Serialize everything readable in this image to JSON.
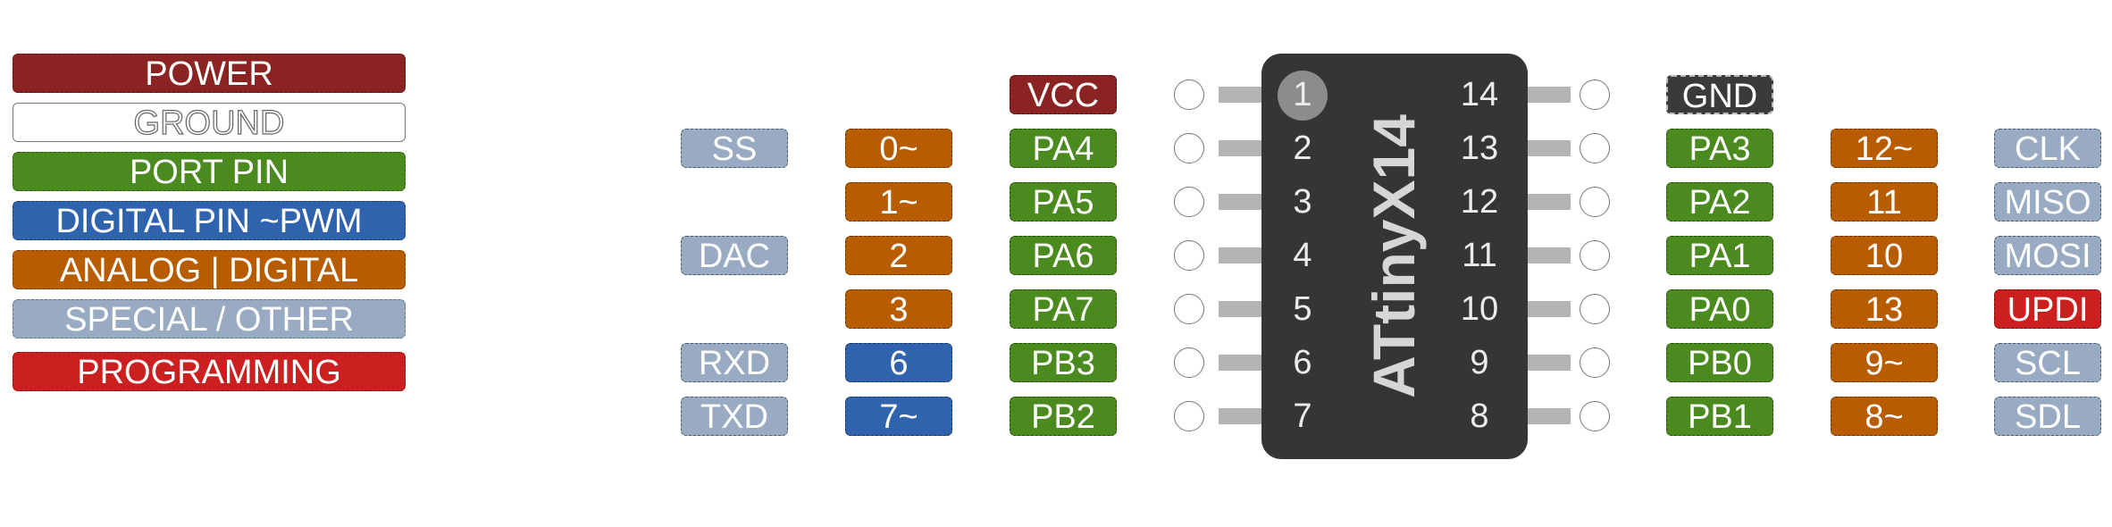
{
  "colors": {
    "power": "#8b2323",
    "ground": "#ffffff",
    "port": "#4a8a1e",
    "digital": "#2f63ad",
    "analog": "#b85c00",
    "special": "#98abc3",
    "programming": "#cc2020",
    "chip_body": "#353535"
  },
  "legend": [
    {
      "label": "POWER",
      "kind": "power"
    },
    {
      "label": "GROUND",
      "kind": "ground"
    },
    {
      "label": "PORT PIN",
      "kind": "port"
    },
    {
      "label": "DIGITAL PIN ~PWM",
      "kind": "digital"
    },
    {
      "label": "ANALOG | DIGITAL",
      "kind": "analog"
    },
    {
      "label": "SPECIAL / OTHER",
      "kind": "special"
    },
    {
      "label": "PROGRAMMING",
      "kind": "programming"
    }
  ],
  "chip": {
    "name": "ATtinyX14",
    "left_pins": [
      {
        "number": "1",
        "port": "VCC",
        "port_kind": "power",
        "digital": "",
        "digital_kind": "",
        "special": "",
        "special_kind": ""
      },
      {
        "number": "2",
        "port": "PA4",
        "port_kind": "port",
        "digital": "0~",
        "digital_kind": "analog",
        "special": "SS",
        "special_kind": "special"
      },
      {
        "number": "3",
        "port": "PA5",
        "port_kind": "port",
        "digital": "1~",
        "digital_kind": "analog",
        "special": "",
        "special_kind": ""
      },
      {
        "number": "4",
        "port": "PA6",
        "port_kind": "port",
        "digital": "2",
        "digital_kind": "analog",
        "special": "DAC",
        "special_kind": "special"
      },
      {
        "number": "5",
        "port": "PA7",
        "port_kind": "port",
        "digital": "3",
        "digital_kind": "analog",
        "special": "",
        "special_kind": ""
      },
      {
        "number": "6",
        "port": "PB3",
        "port_kind": "port",
        "digital": "6",
        "digital_kind": "digital",
        "special": "RXD",
        "special_kind": "special"
      },
      {
        "number": "7",
        "port": "PB2",
        "port_kind": "port",
        "digital": "7~",
        "digital_kind": "digital",
        "special": "TXD",
        "special_kind": "special"
      }
    ],
    "right_pins": [
      {
        "number": "14",
        "port": "GND",
        "port_kind": "ground",
        "digital": "",
        "digital_kind": "",
        "special": "",
        "special_kind": ""
      },
      {
        "number": "13",
        "port": "PA3",
        "port_kind": "port",
        "digital": "12~",
        "digital_kind": "analog",
        "special": "CLK",
        "special_kind": "special"
      },
      {
        "number": "12",
        "port": "PA2",
        "port_kind": "port",
        "digital": "11",
        "digital_kind": "analog",
        "special": "MISO",
        "special_kind": "special"
      },
      {
        "number": "11",
        "port": "PA1",
        "port_kind": "port",
        "digital": "10",
        "digital_kind": "analog",
        "special": "MOSI",
        "special_kind": "special"
      },
      {
        "number": "10",
        "port": "PA0",
        "port_kind": "port",
        "digital": "13",
        "digital_kind": "analog",
        "special": "UPDI",
        "special_kind": "programming"
      },
      {
        "number": "9",
        "port": "PB0",
        "port_kind": "port",
        "digital": "9~",
        "digital_kind": "analog",
        "special": "SCL",
        "special_kind": "special"
      },
      {
        "number": "8",
        "port": "PB1",
        "port_kind": "port",
        "digital": "8~",
        "digital_kind": "analog",
        "special": "SDL",
        "special_kind": "special"
      }
    ]
  }
}
